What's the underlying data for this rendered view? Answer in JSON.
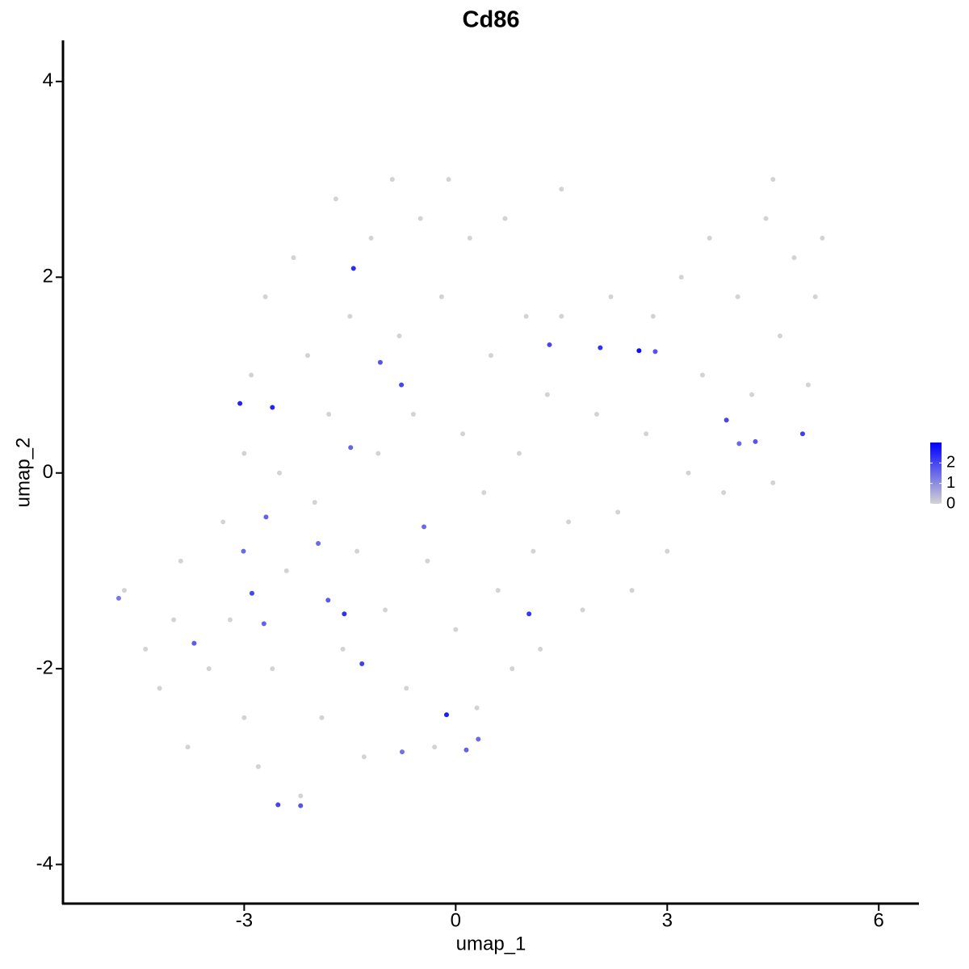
{
  "chart_data": {
    "type": "scatter",
    "title": "Cd86",
    "x_label": "umap_1",
    "y_label": "umap_2",
    "xlim": [
      -5.57,
      6.57
    ],
    "ylim": [
      -4.4,
      4.42
    ],
    "xticks": [
      -3,
      0,
      3,
      6
    ],
    "yticks": [
      -4,
      -2,
      0,
      2,
      4
    ],
    "color_low": "#d3d3d3",
    "color_high": "#0000ff",
    "colorlim": [
      0,
      3.0
    ],
    "colorbar_ticks": [
      0,
      1,
      2
    ],
    "x": [
      -4.2,
      -4.0,
      -3.8,
      -3.5,
      -3.3,
      -3.2,
      -3.0,
      -3.0,
      -2.9,
      -2.8,
      -2.7,
      -2.6,
      -2.5,
      -2.4,
      -2.3,
      -2.2,
      -2.1,
      -2.0,
      -1.9,
      -1.8,
      -1.7,
      -1.6,
      -1.5,
      -1.4,
      -1.3,
      -1.2,
      -1.1,
      -1.0,
      -0.9,
      -0.8,
      -0.7,
      -0.6,
      -0.5,
      -0.4,
      -0.3,
      -0.2,
      -0.1,
      0.0,
      0.1,
      0.2,
      0.3,
      0.4,
      0.5,
      0.6,
      0.7,
      0.8,
      0.9,
      1.0,
      1.1,
      1.2,
      1.3,
      1.5,
      1.6,
      1.8,
      2.0,
      2.2,
      2.3,
      2.5,
      2.7,
      2.8,
      3.0,
      3.2,
      3.3,
      3.5,
      3.6,
      3.8,
      4.0,
      4.2,
      4.4,
      4.5,
      4.6,
      4.8,
      5.0,
      5.1,
      5.2,
      4.5,
      1.5,
      -4.7,
      -4.4,
      -3.9,
      -4.78,
      -3.71,
      -3.06,
      -3.01,
      -2.89,
      -2.72,
      -2.69,
      -2.6,
      -2.52,
      -2.2,
      -1.95,
      -1.81,
      -1.58,
      -1.49,
      -1.45,
      -1.33,
      -1.07,
      -0.77,
      -0.76,
      -0.45,
      -0.13,
      0.15,
      0.32,
      1.04,
      1.33,
      2.05,
      2.6,
      2.83,
      3.84,
      4.02,
      4.25,
      4.92
    ],
    "y": [
      -2.2,
      -1.5,
      -2.8,
      -2.0,
      -0.5,
      -1.5,
      -2.5,
      0.2,
      1.0,
      -3.0,
      1.8,
      -2.0,
      0.0,
      -1.0,
      2.2,
      -3.3,
      1.2,
      -0.3,
      -2.5,
      0.6,
      2.8,
      -1.8,
      1.6,
      -0.8,
      -2.9,
      2.4,
      0.2,
      -1.4,
      3.0,
      1.4,
      -2.2,
      0.6,
      2.6,
      -0.9,
      -2.8,
      1.8,
      3.0,
      -1.6,
      0.4,
      2.4,
      -2.4,
      -0.2,
      1.2,
      -1.2,
      2.6,
      -2.0,
      0.2,
      1.6,
      -0.8,
      -1.8,
      0.8,
      1.6,
      -0.5,
      -1.4,
      0.6,
      1.8,
      -0.4,
      -1.2,
      0.4,
      1.6,
      -0.8,
      2.0,
      0.0,
      1.0,
      2.4,
      -0.2,
      1.8,
      0.8,
      2.6,
      -0.1,
      1.4,
      2.2,
      0.9,
      1.8,
      2.4,
      3.0,
      2.9,
      -1.2,
      -1.8,
      -0.9,
      -1.28,
      -1.74,
      0.71,
      -0.8,
      -1.23,
      -1.54,
      -0.45,
      0.67,
      -3.39,
      -3.4,
      -0.72,
      -1.3,
      -1.44,
      0.26,
      2.09,
      -1.95,
      1.13,
      0.9,
      -2.85,
      -0.55,
      -2.47,
      -2.83,
      -2.72,
      -1.44,
      1.31,
      1.28,
      1.25,
      1.24,
      0.54,
      0.3,
      0.32,
      0.4
    ],
    "values": [
      0,
      0,
      0,
      0,
      0,
      0,
      0,
      0,
      0,
      0,
      0,
      0,
      0,
      0,
      0,
      0,
      0,
      0,
      0,
      0,
      0,
      0,
      0,
      0,
      0,
      0,
      0,
      0,
      0,
      0,
      0,
      0,
      0,
      0,
      0,
      0,
      0,
      0,
      0,
      0,
      0,
      0,
      0,
      0,
      0,
      0,
      0,
      0,
      0,
      0,
      0,
      0,
      0,
      0,
      0,
      0,
      0,
      0,
      0,
      0,
      0,
      0,
      0,
      0,
      0,
      0,
      0,
      0,
      0,
      0,
      0,
      0,
      0,
      0,
      0,
      0,
      0,
      0,
      0,
      0,
      1.3,
      1.7,
      2.5,
      1.5,
      2.0,
      1.6,
      1.6,
      2.5,
      2.0,
      1.8,
      1.5,
      1.7,
      2.3,
      1.6,
      2.4,
      2.1,
      1.8,
      2.0,
      1.4,
      1.5,
      2.6,
      1.6,
      1.5,
      2.2,
      2.0,
      2.3,
      2.8,
      1.8,
      2.0,
      1.5,
      1.8,
      2.1
    ]
  }
}
